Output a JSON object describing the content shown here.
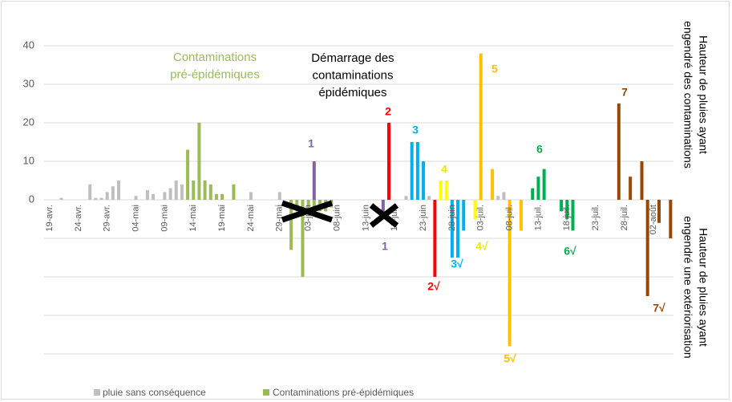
{
  "chart_data": {
    "type": "bar",
    "categories": [
      "19-avr.",
      null,
      null,
      null,
      null,
      "24-avr.",
      null,
      null,
      null,
      null,
      "29-avr.",
      null,
      null,
      null,
      null,
      "04-mai",
      null,
      null,
      null,
      null,
      "09-mai",
      null,
      null,
      null,
      null,
      "14-mai",
      null,
      null,
      null,
      null,
      "19-mai",
      null,
      null,
      null,
      null,
      "24-mai",
      null,
      null,
      null,
      null,
      "29-mai",
      null,
      null,
      null,
      null,
      "03-juin",
      null,
      null,
      null,
      null,
      "08-juin",
      null,
      null,
      null,
      null,
      "13-juin",
      null,
      null,
      null,
      null,
      "18-juin",
      null,
      null,
      null,
      null,
      "23-juin",
      null,
      null,
      null,
      null,
      "28-juin",
      null,
      null,
      null,
      null,
      "03-juil.",
      null,
      null,
      null,
      null,
      "08-juil.",
      null,
      null,
      null,
      null,
      "13-juil.",
      null,
      null,
      null,
      null,
      "18-juil.",
      null,
      null,
      null,
      null,
      "23-juil.",
      null,
      null,
      null,
      null,
      "28-juil.",
      null,
      null,
      null,
      null,
      "02-août",
      null,
      null,
      null
    ],
    "series": [
      {
        "name": "pluie sans conséquence",
        "color": "#bfbfbf",
        "values": [
          null,
          null,
          0.5,
          null,
          null,
          null,
          null,
          4,
          0.5,
          0.5,
          2,
          3.5,
          5,
          null,
          null,
          1,
          null,
          2.5,
          1.5,
          null,
          2,
          3,
          5,
          4,
          null,
          null,
          null,
          null,
          null,
          null,
          null,
          null,
          null,
          null,
          null,
          2,
          null,
          null,
          null,
          null,
          2,
          null,
          null,
          null,
          null,
          null,
          null,
          null,
          null,
          null,
          null,
          null,
          null,
          null,
          null,
          null,
          null,
          null,
          null,
          null,
          null,
          null,
          1,
          null,
          null,
          null,
          1,
          null,
          null,
          null,
          null,
          null,
          null,
          null,
          null,
          null,
          null,
          null,
          1,
          2,
          null,
          null,
          null,
          null,
          null,
          null,
          null,
          null,
          null,
          null,
          null,
          null,
          null,
          null,
          null,
          null,
          null,
          null,
          null,
          null,
          null,
          null,
          null,
          null,
          null,
          null,
          null,
          null,
          null
        ]
      },
      {
        "name": "Contaminations pré-épidémiques",
        "color": "#9bbb59",
        "values": [
          null,
          null,
          null,
          null,
          null,
          null,
          null,
          null,
          null,
          null,
          null,
          null,
          null,
          null,
          null,
          null,
          null,
          null,
          null,
          null,
          null,
          null,
          null,
          null,
          13,
          5,
          20,
          5,
          4,
          1.5,
          1.5,
          null,
          4,
          null,
          null,
          null,
          null,
          null,
          null,
          null,
          null,
          null,
          -13,
          -3,
          -20,
          -3,
          -3,
          -3,
          -3,
          -2,
          null,
          null,
          null,
          null,
          null,
          null,
          null,
          null,
          null,
          null,
          null,
          null,
          null,
          null,
          null,
          null,
          null,
          null,
          null,
          null,
          null,
          null,
          null,
          null,
          null,
          null,
          null,
          null,
          null,
          null,
          null,
          null,
          null,
          null,
          null,
          null,
          null,
          null,
          null,
          null,
          null,
          null,
          null,
          null,
          null,
          null,
          null,
          null,
          null,
          null,
          null,
          null,
          null,
          null,
          null,
          null,
          null,
          null,
          null
        ]
      },
      {
        "color": "#8064a2",
        "values": [
          null,
          null,
          null,
          null,
          null,
          null,
          null,
          null,
          null,
          null,
          null,
          null,
          null,
          null,
          null,
          null,
          null,
          null,
          null,
          null,
          null,
          null,
          null,
          null,
          null,
          null,
          null,
          null,
          null,
          null,
          null,
          null,
          null,
          null,
          null,
          null,
          null,
          null,
          null,
          null,
          null,
          null,
          null,
          null,
          null,
          null,
          10,
          null,
          null,
          null,
          null,
          null,
          null,
          null,
          null,
          null,
          null,
          null,
          -4,
          null,
          null,
          null,
          null,
          null,
          null,
          null,
          null,
          null,
          null,
          null,
          null,
          null,
          null,
          null,
          null,
          null,
          null,
          null,
          null,
          null,
          null,
          null,
          null,
          null,
          null,
          null,
          null,
          null,
          null,
          null,
          null,
          null,
          null,
          null,
          null,
          null,
          null,
          null,
          null,
          null,
          null,
          null,
          null,
          null,
          null,
          null,
          null,
          null,
          null
        ]
      },
      {
        "color": "#ff0000",
        "values": [
          null,
          null,
          null,
          null,
          null,
          null,
          null,
          null,
          null,
          null,
          null,
          null,
          null,
          null,
          null,
          null,
          null,
          null,
          null,
          null,
          null,
          null,
          null,
          null,
          null,
          null,
          null,
          null,
          null,
          null,
          null,
          null,
          null,
          null,
          null,
          null,
          null,
          null,
          null,
          null,
          null,
          null,
          null,
          null,
          null,
          null,
          null,
          null,
          null,
          null,
          null,
          null,
          null,
          null,
          null,
          null,
          null,
          null,
          null,
          20,
          null,
          null,
          null,
          null,
          null,
          null,
          null,
          -20,
          null,
          null,
          null,
          null,
          null,
          null,
          null,
          null,
          null,
          null,
          null,
          null,
          null,
          null,
          null,
          null,
          null,
          null,
          null,
          null,
          null,
          null,
          null,
          null,
          null,
          null,
          null,
          null,
          null,
          null,
          null,
          null,
          null,
          null,
          null,
          null,
          null,
          null,
          null,
          null,
          null
        ]
      },
      {
        "color": "#00b0f0",
        "values": [
          null,
          null,
          null,
          null,
          null,
          null,
          null,
          null,
          null,
          null,
          null,
          null,
          null,
          null,
          null,
          null,
          null,
          null,
          null,
          null,
          null,
          null,
          null,
          null,
          null,
          null,
          null,
          null,
          null,
          null,
          null,
          null,
          null,
          null,
          null,
          null,
          null,
          null,
          null,
          null,
          null,
          null,
          null,
          null,
          null,
          null,
          null,
          null,
          null,
          null,
          null,
          null,
          null,
          null,
          null,
          null,
          null,
          null,
          null,
          null,
          null,
          null,
          null,
          15,
          15,
          10,
          null,
          null,
          null,
          null,
          -15,
          -15,
          -8,
          null,
          null,
          null,
          null,
          null,
          null,
          null,
          null,
          null,
          null,
          null,
          null,
          null,
          null,
          null,
          null,
          null,
          null,
          null,
          null,
          null,
          null,
          null,
          null,
          null,
          null,
          null,
          null,
          null,
          null,
          null,
          null,
          null,
          null,
          null,
          null
        ]
      },
      {
        "color": "#ffff00",
        "values": [
          null,
          null,
          null,
          null,
          null,
          null,
          null,
          null,
          null,
          null,
          null,
          null,
          null,
          null,
          null,
          null,
          null,
          null,
          null,
          null,
          null,
          null,
          null,
          null,
          null,
          null,
          null,
          null,
          null,
          null,
          null,
          null,
          null,
          null,
          null,
          null,
          null,
          null,
          null,
          null,
          null,
          null,
          null,
          null,
          null,
          null,
          null,
          null,
          null,
          null,
          null,
          null,
          null,
          null,
          null,
          null,
          null,
          null,
          null,
          null,
          null,
          null,
          null,
          null,
          null,
          null,
          null,
          null,
          5,
          5,
          null,
          null,
          null,
          null,
          -5,
          null,
          null,
          null,
          null,
          null,
          null,
          null,
          null,
          null,
          null,
          null,
          null,
          null,
          null,
          null,
          null,
          null,
          null,
          null,
          null,
          null,
          null,
          null,
          null,
          null,
          null,
          null,
          null,
          null,
          null,
          null,
          null,
          null,
          null
        ]
      },
      {
        "color": "#ffc000",
        "values": [
          null,
          null,
          null,
          null,
          null,
          null,
          null,
          null,
          null,
          null,
          null,
          null,
          null,
          null,
          null,
          null,
          null,
          null,
          null,
          null,
          null,
          null,
          null,
          null,
          null,
          null,
          null,
          null,
          null,
          null,
          null,
          null,
          null,
          null,
          null,
          null,
          null,
          null,
          null,
          null,
          null,
          null,
          null,
          null,
          null,
          null,
          null,
          null,
          null,
          null,
          null,
          null,
          null,
          null,
          null,
          null,
          null,
          null,
          null,
          null,
          null,
          null,
          null,
          null,
          null,
          null,
          null,
          null,
          null,
          null,
          null,
          null,
          null,
          null,
          null,
          38,
          null,
          8,
          null,
          null,
          -38,
          null,
          -8,
          null,
          null,
          null,
          null,
          null,
          null,
          null,
          null,
          null,
          null,
          null,
          null,
          null,
          null,
          null,
          null,
          null,
          null,
          null,
          null,
          null,
          null,
          null,
          null,
          null,
          null
        ]
      },
      {
        "color": "#00b050",
        "values": [
          null,
          null,
          null,
          null,
          null,
          null,
          null,
          null,
          null,
          null,
          null,
          null,
          null,
          null,
          null,
          null,
          null,
          null,
          null,
          null,
          null,
          null,
          null,
          null,
          null,
          null,
          null,
          null,
          null,
          null,
          null,
          null,
          null,
          null,
          null,
          null,
          null,
          null,
          null,
          null,
          null,
          null,
          null,
          null,
          null,
          null,
          null,
          null,
          null,
          null,
          null,
          null,
          null,
          null,
          null,
          null,
          null,
          null,
          null,
          null,
          null,
          null,
          null,
          null,
          null,
          null,
          null,
          null,
          null,
          null,
          null,
          null,
          null,
          null,
          null,
          null,
          null,
          null,
          null,
          null,
          null,
          null,
          null,
          null,
          3,
          6,
          8,
          null,
          null,
          -3,
          -5,
          -8,
          null,
          null,
          null,
          null,
          null,
          null,
          null,
          null,
          null,
          null,
          null,
          null,
          null,
          null,
          null,
          null,
          null
        ]
      },
      {
        "color": "#974706",
        "values": [
          null,
          null,
          null,
          null,
          null,
          null,
          null,
          null,
          null,
          null,
          null,
          null,
          null,
          null,
          null,
          null,
          null,
          null,
          null,
          null,
          null,
          null,
          null,
          null,
          null,
          null,
          null,
          null,
          null,
          null,
          null,
          null,
          null,
          null,
          null,
          null,
          null,
          null,
          null,
          null,
          null,
          null,
          null,
          null,
          null,
          null,
          null,
          null,
          null,
          null,
          null,
          null,
          null,
          null,
          null,
          null,
          null,
          null,
          null,
          null,
          null,
          null,
          null,
          null,
          null,
          null,
          null,
          null,
          null,
          null,
          null,
          null,
          null,
          null,
          null,
          null,
          null,
          null,
          null,
          null,
          null,
          null,
          null,
          null,
          null,
          null,
          null,
          null,
          null,
          null,
          null,
          null,
          null,
          null,
          null,
          null,
          null,
          null,
          null,
          25,
          null,
          6,
          null,
          10,
          -25,
          null,
          -6,
          null,
          -10
        ]
      }
    ],
    "ylim": [
      -40,
      40
    ],
    "yticks": [
      0,
      10,
      20,
      30,
      40
    ],
    "grid_lines": [
      -40,
      -30,
      -20,
      -10,
      0,
      10,
      20,
      30,
      40
    ],
    "y_titles": [
      [
        "Hauteur de pluies ayant",
        "engendré des contaminations"
      ],
      [
        "Hauteur de pluies ayant",
        "engendré une extériorisation"
      ]
    ],
    "annotations": [
      {
        "lines": [
          "Contaminations",
          "pré-épidémiques"
        ],
        "color": "#9bbb59"
      },
      {
        "lines": [
          "Démarrage des",
          "contaminations",
          "épidémiques"
        ],
        "color": "#000000"
      },
      {
        "lines": [
          "1"
        ],
        "color": "#8064a2"
      },
      {
        "lines": [
          "1"
        ],
        "color": "#8064a2"
      },
      {
        "lines": [
          "2"
        ],
        "color": "#ff0000"
      },
      {
        "lines": [
          "2√"
        ],
        "color": "#ff0000"
      },
      {
        "lines": [
          "3"
        ],
        "color": "#00b0f0"
      },
      {
        "lines": [
          "3√"
        ],
        "color": "#00b0f0"
      },
      {
        "lines": [
          "4"
        ],
        "color": "#f2e400"
      },
      {
        "lines": [
          "4√"
        ],
        "color": "#f2e400"
      },
      {
        "lines": [
          "5"
        ],
        "color": "#ffc000"
      },
      {
        "lines": [
          "5√"
        ],
        "color": "#ffc000"
      },
      {
        "lines": [
          "6"
        ],
        "color": "#00b050"
      },
      {
        "lines": [
          "6√"
        ],
        "color": "#00b050"
      },
      {
        "lines": [
          "7"
        ],
        "color": "#974706"
      },
      {
        "lines": [
          "7√"
        ],
        "color": "#974706"
      }
    ]
  }
}
